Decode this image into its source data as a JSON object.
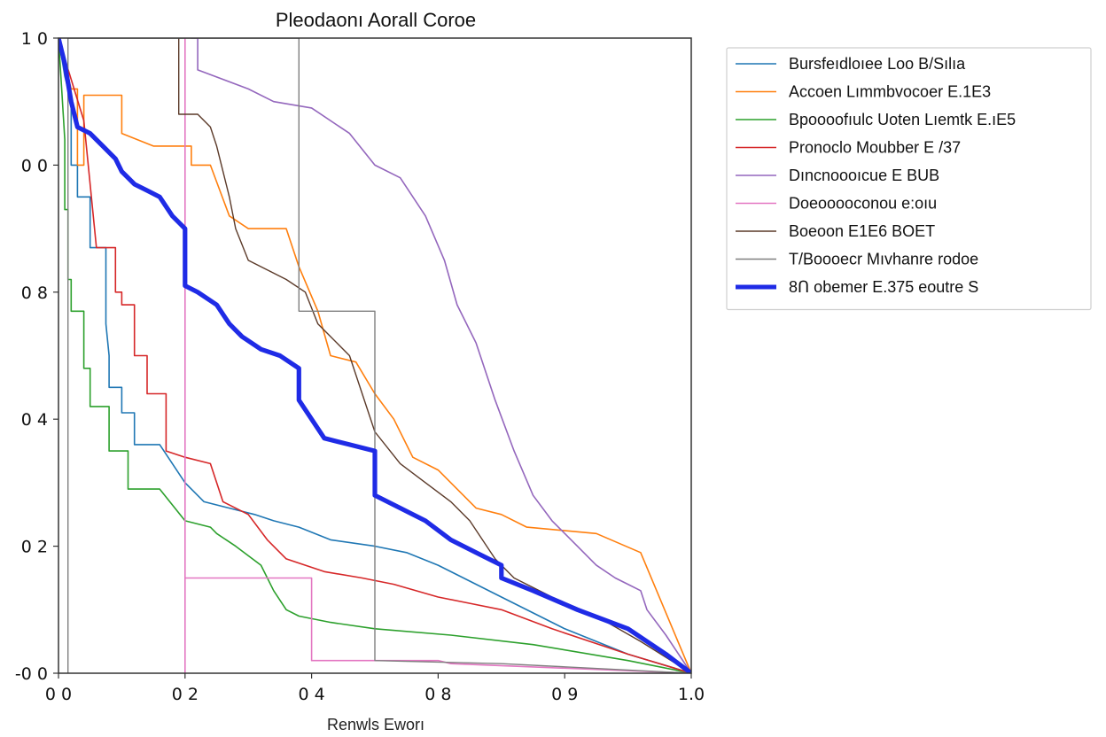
{
  "chart_data": {
    "type": "line",
    "title": "Pleodaonı Aorall Coroe",
    "xlabel": "Renwls Eworı",
    "ylabel": "",
    "x_tick_labels": [
      "0 0",
      "0 2",
      "0 4",
      "0 8",
      "0 9",
      "1.0"
    ],
    "x_ticks": [
      0.0,
      0.2,
      0.4,
      0.6,
      0.8,
      1.0
    ],
    "y_tick_labels": [
      "-0 0",
      "0 2",
      "0 4",
      "0 8",
      "0 0",
      "1 0"
    ],
    "y_ticks": [
      0.0,
      0.2,
      0.4,
      0.6,
      0.8,
      1.0
    ],
    "xlim": [
      0,
      1
    ],
    "ylim": [
      0,
      1
    ],
    "grid": false,
    "legend_position": "outside-right",
    "series": [
      {
        "name": "Bursfeıdloıee Loo B/Sılıa",
        "color": "#1f77b4",
        "width": 1.6,
        "points": [
          [
            0,
            1.0
          ],
          [
            0.01,
            0.94
          ],
          [
            0.02,
            0.9
          ],
          [
            0.02,
            0.8
          ],
          [
            0.03,
            0.8
          ],
          [
            0.03,
            0.75
          ],
          [
            0.05,
            0.75
          ],
          [
            0.05,
            0.67
          ],
          [
            0.075,
            0.67
          ],
          [
            0.075,
            0.55
          ],
          [
            0.08,
            0.5
          ],
          [
            0.08,
            0.45
          ],
          [
            0.1,
            0.45
          ],
          [
            0.1,
            0.41
          ],
          [
            0.12,
            0.41
          ],
          [
            0.12,
            0.36
          ],
          [
            0.16,
            0.36
          ],
          [
            0.2,
            0.3
          ],
          [
            0.23,
            0.27
          ],
          [
            0.27,
            0.26
          ],
          [
            0.31,
            0.25
          ],
          [
            0.34,
            0.24
          ],
          [
            0.38,
            0.23
          ],
          [
            0.43,
            0.21
          ],
          [
            0.5,
            0.2
          ],
          [
            0.55,
            0.19
          ],
          [
            0.6,
            0.17
          ],
          [
            0.7,
            0.12
          ],
          [
            0.8,
            0.07
          ],
          [
            0.9,
            0.03
          ],
          [
            1.0,
            0.0
          ]
        ]
      },
      {
        "name": "Accoen Lımmbvocoer E.1E3",
        "color": "#ff7f0e",
        "width": 1.6,
        "points": [
          [
            0,
            1.0
          ],
          [
            0.02,
            0.92
          ],
          [
            0.03,
            0.92
          ],
          [
            0.03,
            0.8
          ],
          [
            0.04,
            0.8
          ],
          [
            0.04,
            0.91
          ],
          [
            0.1,
            0.91
          ],
          [
            0.1,
            0.85
          ],
          [
            0.15,
            0.83
          ],
          [
            0.21,
            0.83
          ],
          [
            0.21,
            0.8
          ],
          [
            0.24,
            0.8
          ],
          [
            0.27,
            0.72
          ],
          [
            0.3,
            0.7
          ],
          [
            0.36,
            0.7
          ],
          [
            0.38,
            0.64
          ],
          [
            0.41,
            0.57
          ],
          [
            0.43,
            0.5
          ],
          [
            0.47,
            0.49
          ],
          [
            0.5,
            0.44
          ],
          [
            0.53,
            0.4
          ],
          [
            0.56,
            0.34
          ],
          [
            0.6,
            0.32
          ],
          [
            0.66,
            0.26
          ],
          [
            0.7,
            0.25
          ],
          [
            0.74,
            0.23
          ],
          [
            0.85,
            0.22
          ],
          [
            0.92,
            0.19
          ],
          [
            1.0,
            0.0
          ]
        ]
      },
      {
        "name": "Bpoooofıulc Uoten Lıemtk E.ıE5",
        "color": "#2ca02c",
        "width": 1.6,
        "points": [
          [
            0,
            1.0
          ],
          [
            0.005,
            0.92
          ],
          [
            0.01,
            0.84
          ],
          [
            0.01,
            0.73
          ],
          [
            0.015,
            0.73
          ],
          [
            0.015,
            0.62
          ],
          [
            0.02,
            0.62
          ],
          [
            0.02,
            0.57
          ],
          [
            0.04,
            0.57
          ],
          [
            0.04,
            0.48
          ],
          [
            0.05,
            0.48
          ],
          [
            0.05,
            0.42
          ],
          [
            0.08,
            0.42
          ],
          [
            0.08,
            0.35
          ],
          [
            0.11,
            0.35
          ],
          [
            0.11,
            0.29
          ],
          [
            0.16,
            0.29
          ],
          [
            0.2,
            0.24
          ],
          [
            0.24,
            0.23
          ],
          [
            0.25,
            0.22
          ],
          [
            0.28,
            0.2
          ],
          [
            0.32,
            0.17
          ],
          [
            0.34,
            0.13
          ],
          [
            0.36,
            0.1
          ],
          [
            0.38,
            0.09
          ],
          [
            0.43,
            0.08
          ],
          [
            0.5,
            0.07
          ],
          [
            0.62,
            0.06
          ],
          [
            0.75,
            0.045
          ],
          [
            0.9,
            0.02
          ],
          [
            1.0,
            0.0
          ]
        ]
      },
      {
        "name": "Pronoclo Moubber E /37",
        "color": "#d62728",
        "width": 1.6,
        "points": [
          [
            0,
            1.0
          ],
          [
            0.04,
            0.87
          ],
          [
            0.06,
            0.67
          ],
          [
            0.09,
            0.67
          ],
          [
            0.09,
            0.6
          ],
          [
            0.1,
            0.6
          ],
          [
            0.1,
            0.58
          ],
          [
            0.12,
            0.58
          ],
          [
            0.12,
            0.5
          ],
          [
            0.14,
            0.5
          ],
          [
            0.14,
            0.44
          ],
          [
            0.17,
            0.44
          ],
          [
            0.17,
            0.35
          ],
          [
            0.2,
            0.34
          ],
          [
            0.24,
            0.33
          ],
          [
            0.26,
            0.27
          ],
          [
            0.3,
            0.25
          ],
          [
            0.33,
            0.21
          ],
          [
            0.36,
            0.18
          ],
          [
            0.42,
            0.16
          ],
          [
            0.48,
            0.15
          ],
          [
            0.53,
            0.14
          ],
          [
            0.6,
            0.12
          ],
          [
            0.65,
            0.11
          ],
          [
            0.7,
            0.1
          ],
          [
            0.78,
            0.07
          ],
          [
            0.9,
            0.03
          ],
          [
            1.0,
            0.0
          ]
        ]
      },
      {
        "name": "Dıncnoooıcue E BUB",
        "color": "#9467bd",
        "width": 1.6,
        "points": [
          [
            0.21,
            1.0
          ],
          [
            0.22,
            1.0
          ],
          [
            0.22,
            0.95
          ],
          [
            0.3,
            0.92
          ],
          [
            0.34,
            0.9
          ],
          [
            0.4,
            0.89
          ],
          [
            0.46,
            0.85
          ],
          [
            0.5,
            0.8
          ],
          [
            0.54,
            0.78
          ],
          [
            0.58,
            0.72
          ],
          [
            0.61,
            0.65
          ],
          [
            0.63,
            0.58
          ],
          [
            0.66,
            0.52
          ],
          [
            0.69,
            0.43
          ],
          [
            0.72,
            0.35
          ],
          [
            0.75,
            0.28
          ],
          [
            0.78,
            0.24
          ],
          [
            0.82,
            0.2
          ],
          [
            0.85,
            0.17
          ],
          [
            0.88,
            0.15
          ],
          [
            0.9,
            0.14
          ],
          [
            0.92,
            0.13
          ],
          [
            0.93,
            0.1
          ],
          [
            0.96,
            0.06
          ],
          [
            1.0,
            0.0
          ]
        ]
      },
      {
        "name": "Doeooooconou e:oıu",
        "color": "#e377c2",
        "width": 1.6,
        "points": [
          [
            0.2,
            1.0
          ],
          [
            0.2,
            0.0
          ],
          [
            0.2,
            0.15
          ],
          [
            0.4,
            0.15
          ],
          [
            0.4,
            0.02
          ],
          [
            0.6,
            0.02
          ],
          [
            0.62,
            0.015
          ],
          [
            1.0,
            0.0
          ]
        ]
      },
      {
        "name": "Boeoon E1E6 BOET",
        "color": "#5b3a29",
        "width": 1.4,
        "points": [
          [
            0.19,
            1.0
          ],
          [
            0.19,
            0.88
          ],
          [
            0.22,
            0.88
          ],
          [
            0.24,
            0.86
          ],
          [
            0.25,
            0.83
          ],
          [
            0.27,
            0.75
          ],
          [
            0.28,
            0.7
          ],
          [
            0.3,
            0.65
          ],
          [
            0.36,
            0.62
          ],
          [
            0.39,
            0.6
          ],
          [
            0.41,
            0.55
          ],
          [
            0.46,
            0.5
          ],
          [
            0.5,
            0.38
          ],
          [
            0.54,
            0.33
          ],
          [
            0.58,
            0.3
          ],
          [
            0.62,
            0.27
          ],
          [
            0.65,
            0.24
          ],
          [
            0.69,
            0.18
          ],
          [
            0.72,
            0.15
          ],
          [
            0.78,
            0.12
          ],
          [
            0.85,
            0.09
          ],
          [
            0.92,
            0.05
          ],
          [
            1.0,
            0.0
          ]
        ]
      },
      {
        "name": "T/Boooecr Mıvhanre rodoe",
        "color": "#7f7f7f",
        "width": 1.4,
        "points": [
          [
            0.015,
            1.0
          ],
          [
            0.015,
            0.0
          ],
          [
            0.015,
            1.0
          ],
          [
            0.38,
            1.0
          ],
          [
            0.38,
            0.57
          ],
          [
            0.5,
            0.57
          ],
          [
            0.5,
            0.02
          ],
          [
            0.7,
            0.015
          ],
          [
            1.0,
            0.0
          ]
        ]
      },
      {
        "name": "8Ո obemer E.375 eoutre S",
        "color": "#1f2be6",
        "width": 5.2,
        "points": [
          [
            0,
            1.0
          ],
          [
            0.01,
            0.96
          ],
          [
            0.02,
            0.9
          ],
          [
            0.03,
            0.86
          ],
          [
            0.05,
            0.85
          ],
          [
            0.07,
            0.83
          ],
          [
            0.09,
            0.81
          ],
          [
            0.1,
            0.79
          ],
          [
            0.12,
            0.77
          ],
          [
            0.14,
            0.76
          ],
          [
            0.16,
            0.75
          ],
          [
            0.18,
            0.72
          ],
          [
            0.2,
            0.7
          ],
          [
            0.2,
            0.61
          ],
          [
            0.22,
            0.6
          ],
          [
            0.25,
            0.58
          ],
          [
            0.27,
            0.55
          ],
          [
            0.29,
            0.53
          ],
          [
            0.32,
            0.51
          ],
          [
            0.35,
            0.5
          ],
          [
            0.38,
            0.48
          ],
          [
            0.38,
            0.43
          ],
          [
            0.4,
            0.4
          ],
          [
            0.42,
            0.37
          ],
          [
            0.46,
            0.36
          ],
          [
            0.5,
            0.35
          ],
          [
            0.5,
            0.28
          ],
          [
            0.54,
            0.26
          ],
          [
            0.58,
            0.24
          ],
          [
            0.62,
            0.21
          ],
          [
            0.66,
            0.19
          ],
          [
            0.7,
            0.17
          ],
          [
            0.7,
            0.15
          ],
          [
            0.75,
            0.13
          ],
          [
            0.82,
            0.1
          ],
          [
            0.9,
            0.07
          ],
          [
            0.96,
            0.03
          ],
          [
            1.0,
            0.0
          ]
        ]
      }
    ]
  }
}
